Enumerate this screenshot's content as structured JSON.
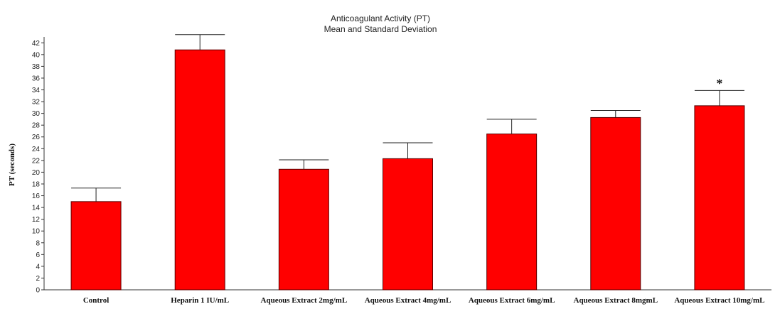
{
  "chart_data": {
    "type": "bar",
    "title": "Anticoagulant Activity (PT)",
    "subtitle": "Mean and Standard Deviation",
    "xlabel": "",
    "ylabel": "PT (seconds)",
    "ylim": [
      0,
      43
    ],
    "yticks": [
      0,
      2,
      4,
      6,
      8,
      10,
      12,
      14,
      16,
      18,
      20,
      22,
      24,
      26,
      28,
      30,
      32,
      34,
      36,
      38,
      40,
      42
    ],
    "categories": [
      "Control",
      "Heparin 1 IU/mL",
      "Aqueous Extract 2mg/mL",
      "Aqueous Extract 4mg/mL",
      "Aqueous Extract 6mg/mL",
      "Aqueous Extract 8mgmL",
      "Aqueous Extract 10mg/mL"
    ],
    "values": [
      15.0,
      40.8,
      20.5,
      22.3,
      26.5,
      29.3,
      31.3
    ],
    "errors": [
      2.3,
      2.6,
      1.6,
      2.7,
      2.5,
      1.2,
      2.6
    ],
    "annotations": [
      "",
      "",
      "",
      "",
      "",
      "",
      "*"
    ],
    "bar_color": "#ff0000",
    "grid": false,
    "legend": "none"
  }
}
